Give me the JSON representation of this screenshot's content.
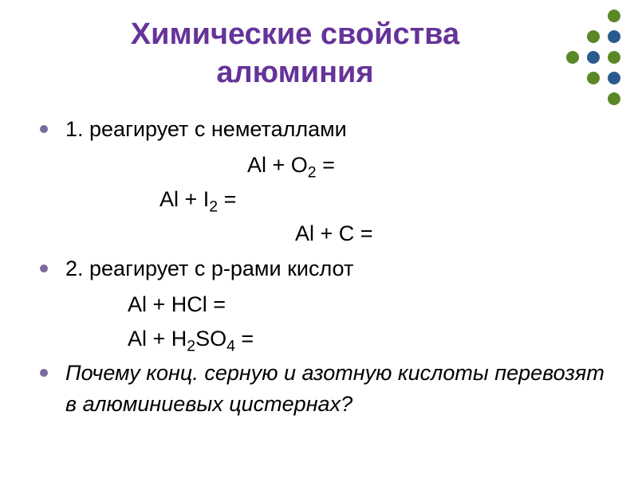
{
  "title": {
    "line1": "Химические свойства",
    "line2": "алюминия",
    "color": "#663399",
    "fontsize": 38
  },
  "body": {
    "color": "#000000",
    "fontsize": 27,
    "bullet_color": "#7a6b9e"
  },
  "items": [
    {
      "type": "bullet",
      "text": "1. реагирует с неметаллами"
    },
    {
      "type": "eq",
      "class": "eq1",
      "tokens": [
        "Al + O",
        {
          "sub": "2"
        },
        " ="
      ]
    },
    {
      "type": "eq",
      "class": "eq2",
      "tokens": [
        "Al + I",
        {
          "sub": "2"
        },
        " ="
      ]
    },
    {
      "type": "eq",
      "class": "eq3",
      "tokens": [
        "Al + C ="
      ]
    },
    {
      "type": "bullet",
      "text": "2. реагирует с р-рами кислот"
    },
    {
      "type": "eq",
      "class": "eq4",
      "tokens": [
        "Al + HCl ="
      ]
    },
    {
      "type": "eq",
      "class": "eq5",
      "tokens": [
        "Al + H",
        {
          "sub": "2"
        },
        "SO",
        {
          "sub": "4"
        },
        " ="
      ]
    },
    {
      "type": "bullet",
      "italic": true,
      "text": "Почему конц. серную и азотную кислоты перевозят в алюминиевых цистернах?"
    }
  ],
  "decoration": {
    "dots": [
      {
        "r": 0,
        "c": 2,
        "color": "#5b8827"
      },
      {
        "r": 1,
        "c": 1,
        "color": "#5b8827"
      },
      {
        "r": 1,
        "c": 2,
        "color": "#2a5b8f"
      },
      {
        "r": 2,
        "c": 0,
        "color": "#5b8827"
      },
      {
        "r": 2,
        "c": 1,
        "color": "#2a5b8f"
      },
      {
        "r": 2,
        "c": 2,
        "color": "#5b8827"
      },
      {
        "r": 3,
        "c": 1,
        "color": "#5b8827"
      },
      {
        "r": 3,
        "c": 2,
        "color": "#2a5b8f"
      },
      {
        "r": 4,
        "c": 2,
        "color": "#5b8827"
      }
    ]
  }
}
